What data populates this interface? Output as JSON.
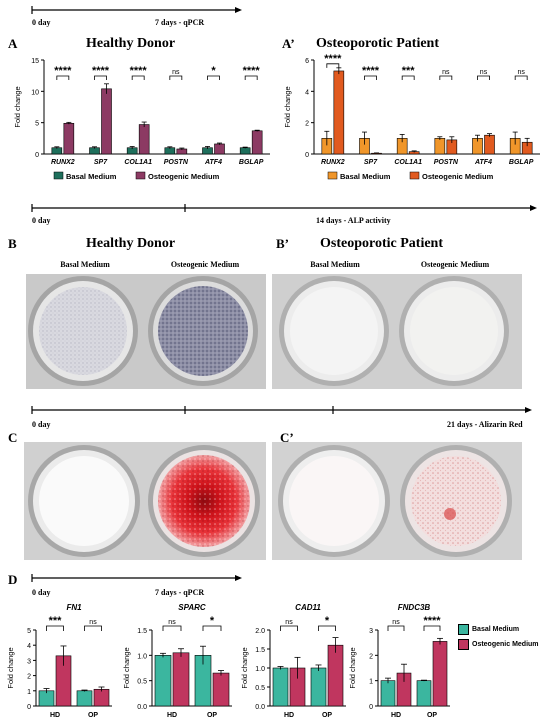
{
  "timeline_a": {
    "start": "0 day",
    "end": "7 days - qPCR"
  },
  "panel_a": {
    "letter": "A",
    "title": "Healthy Donor",
    "chart_data": {
      "type": "bar",
      "ylabel": "Fold change",
      "ylim": [
        0,
        15
      ],
      "yticks": [
        0,
        5,
        10,
        15
      ],
      "categories": [
        "RUNX2",
        "SP7",
        "COL1A1",
        "POSTN",
        "ATF4",
        "BGLAP"
      ],
      "series": [
        {
          "name": "Basal Medium",
          "values": [
            1.0,
            1.0,
            1.0,
            1.0,
            1.0,
            1.0
          ],
          "errors": [
            0.15,
            0.15,
            0.2,
            0.15,
            0.2,
            0.1
          ]
        },
        {
          "name": "Osteogenic Medium",
          "values": [
            4.9,
            10.4,
            4.7,
            0.8,
            1.6,
            3.7
          ],
          "errors": [
            0.15,
            0.8,
            0.4,
            0.15,
            0.15,
            0.1
          ]
        }
      ],
      "significance": [
        "****",
        "****",
        "****",
        "ns",
        "*",
        "****"
      ],
      "colors": [
        "#1e6f5c",
        "#8c3a63"
      ]
    }
  },
  "panel_a2": {
    "letter": "A’",
    "title": "Osteoporotic Patient",
    "chart_data": {
      "type": "bar",
      "ylabel": "Fold change",
      "ylim": [
        0,
        6
      ],
      "yticks": [
        0,
        2,
        4,
        6
      ],
      "categories": [
        "RUNX2",
        "SP7",
        "COL1A1",
        "POSTN",
        "ATF4",
        "BGLAP"
      ],
      "series": [
        {
          "name": "Basal Medium",
          "values": [
            1.0,
            1.0,
            1.0,
            1.0,
            1.0,
            1.0
          ],
          "errors": [
            0.45,
            0.4,
            0.25,
            0.1,
            0.2,
            0.4
          ]
        },
        {
          "name": "Osteogenic Medium",
          "values": [
            5.3,
            0.05,
            0.15,
            0.9,
            1.2,
            0.75
          ],
          "errors": [
            0.2,
            0.02,
            0.05,
            0.2,
            0.1,
            0.25
          ]
        }
      ],
      "significance": [
        "****",
        "****",
        "***",
        "ns",
        "ns",
        "ns"
      ],
      "colors": [
        "#f0962a",
        "#e15a1f"
      ]
    }
  },
  "timeline_b": {
    "start": "0 day",
    "end": "14 days - ALP activity"
  },
  "panel_b": {
    "letter": "B",
    "title": "Healthy Donor",
    "well_labels": [
      "Basal Medium",
      "Osteogenic Medium"
    ]
  },
  "panel_b2": {
    "letter": "B’",
    "title": "Osteoporotic Patient",
    "well_labels": [
      "Basal Medium",
      "Osteogenic Medium"
    ]
  },
  "timeline_c": {
    "start": "0 day",
    "end": "21 days - Alizarin Red"
  },
  "panel_c": {
    "letter": "C"
  },
  "panel_c2": {
    "letter": "C’"
  },
  "timeline_d": {
    "start": "0 day",
    "end": "7 days - qPCR"
  },
  "panel_d": {
    "letter": "D",
    "legend": [
      "Basal Medium",
      "Osteogenic Medium"
    ],
    "colors": [
      "#3bb69f",
      "#c0365f"
    ],
    "chart_data": [
      {
        "type": "bar",
        "title": "FN1",
        "ylabel": "Fold change",
        "ylim": [
          0,
          5
        ],
        "yticks": [
          0,
          1,
          2,
          3,
          4,
          5
        ],
        "categories": [
          "HD",
          "OP"
        ],
        "series": [
          {
            "name": "Basal Medium",
            "values": [
              1.0,
              1.0
            ],
            "errors": [
              0.15,
              0.05
            ]
          },
          {
            "name": "Osteogenic Medium",
            "values": [
              3.3,
              1.1
            ],
            "errors": [
              0.65,
              0.15
            ]
          }
        ],
        "significance": [
          "***",
          "ns"
        ]
      },
      {
        "type": "bar",
        "title": "SPARC",
        "ylabel": "Fold change",
        "ylim": [
          0,
          1.5
        ],
        "yticks": [
          0.0,
          0.5,
          1.0,
          1.5
        ],
        "categories": [
          "HD",
          "OP"
        ],
        "series": [
          {
            "name": "Basal Medium",
            "values": [
              1.0,
              1.0
            ],
            "errors": [
              0.04,
              0.18
            ]
          },
          {
            "name": "Osteogenic Medium",
            "values": [
              1.05,
              0.65
            ],
            "errors": [
              0.08,
              0.05
            ]
          }
        ],
        "significance": [
          "ns",
          "*"
        ]
      },
      {
        "type": "bar",
        "title": "CAD11",
        "ylabel": "Fold change",
        "ylim": [
          0,
          2
        ],
        "yticks": [
          0.0,
          0.5,
          1.0,
          1.5,
          2.0
        ],
        "categories": [
          "HD",
          "OP"
        ],
        "series": [
          {
            "name": "Basal Medium",
            "values": [
              1.0,
              1.0
            ],
            "errors": [
              0.04,
              0.08
            ]
          },
          {
            "name": "Osteogenic Medium",
            "values": [
              1.0,
              1.6
            ],
            "errors": [
              0.28,
              0.2
            ]
          }
        ],
        "significance": [
          "ns",
          "*"
        ]
      },
      {
        "type": "bar",
        "title": "FNDC3B",
        "ylabel": "Fold change",
        "ylim": [
          0,
          3
        ],
        "yticks": [
          0,
          1,
          2,
          3
        ],
        "categories": [
          "HD",
          "OP"
        ],
        "series": [
          {
            "name": "Basal Medium",
            "values": [
              1.0,
              1.0
            ],
            "errors": [
              0.1,
              0.02
            ]
          },
          {
            "name": "Osteogenic Medium",
            "values": [
              1.3,
              2.55
            ],
            "errors": [
              0.35,
              0.12
            ]
          }
        ],
        "significance": [
          "ns",
          "****"
        ]
      }
    ]
  }
}
